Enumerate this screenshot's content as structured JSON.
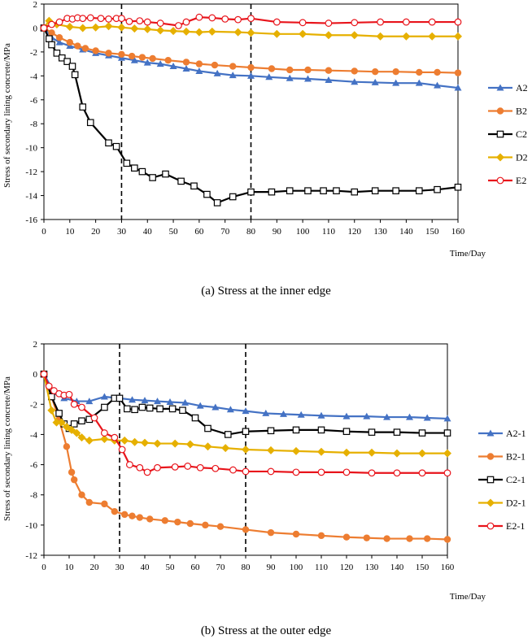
{
  "chart_data": [
    {
      "type": "line",
      "caption": "(a) Stress at the inner edge",
      "xlabel": "Time/Day",
      "ylabel": "Stress of secondary lining concrete/MPa",
      "xlim": [
        0,
        160
      ],
      "ylim": [
        -16,
        2
      ],
      "xticks": [
        0,
        10,
        20,
        30,
        40,
        50,
        60,
        70,
        80,
        90,
        100,
        110,
        120,
        130,
        140,
        150,
        160
      ],
      "yticks": [
        2,
        0,
        -2,
        -4,
        -6,
        -8,
        -10,
        -12,
        -14,
        -16
      ],
      "vlines": [
        30,
        80
      ],
      "legend_position": "right",
      "grid": false,
      "series": [
        {
          "name": "A2",
          "color": "#4472C4",
          "marker": "triangle",
          "x": [
            0,
            3,
            6,
            10,
            15,
            20,
            25,
            30,
            35,
            40,
            45,
            50,
            55,
            60,
            67,
            73,
            80,
            87,
            95,
            102,
            110,
            120,
            128,
            136,
            145,
            152,
            160
          ],
          "y": [
            0,
            -0.8,
            -1.2,
            -1.5,
            -1.8,
            -2.1,
            -2.3,
            -2.5,
            -2.7,
            -2.9,
            -3.0,
            -3.2,
            -3.4,
            -3.6,
            -3.8,
            -3.95,
            -4.0,
            -4.1,
            -4.2,
            -4.25,
            -4.35,
            -4.5,
            -4.55,
            -4.6,
            -4.6,
            -4.8,
            -5.0
          ]
        },
        {
          "name": "B2",
          "color": "#ED7D31",
          "marker": "circle-filled",
          "x": [
            0,
            3,
            6,
            10,
            13,
            16,
            20,
            25,
            30,
            34,
            38,
            42,
            48,
            55,
            60,
            66,
            73,
            80,
            88,
            95,
            102,
            110,
            120,
            128,
            136,
            145,
            152,
            160
          ],
          "y": [
            0,
            -0.4,
            -0.8,
            -1.2,
            -1.5,
            -1.7,
            -1.9,
            -2.1,
            -2.2,
            -2.35,
            -2.45,
            -2.55,
            -2.7,
            -2.85,
            -3.0,
            -3.1,
            -3.2,
            -3.3,
            -3.4,
            -3.5,
            -3.5,
            -3.55,
            -3.6,
            -3.65,
            -3.65,
            -3.7,
            -3.7,
            -3.75
          ]
        },
        {
          "name": "C2",
          "color": "#000000",
          "marker": "square-open",
          "x": [
            0,
            2,
            3,
            5,
            7,
            9,
            11,
            12,
            15,
            18,
            25,
            28,
            32,
            35,
            38,
            42,
            47,
            53,
            58,
            63,
            67,
            73,
            80,
            88,
            95,
            102,
            108,
            113,
            120,
            128,
            136,
            145,
            152,
            160
          ],
          "y": [
            0,
            -0.9,
            -1.4,
            -2.1,
            -2.5,
            -2.8,
            -3.2,
            -3.9,
            -6.6,
            -7.9,
            -9.6,
            -9.9,
            -11.3,
            -11.7,
            -12.0,
            -12.5,
            -12.2,
            -12.8,
            -13.2,
            -13.9,
            -14.6,
            -14.1,
            -13.7,
            -13.7,
            -13.6,
            -13.6,
            -13.6,
            -13.6,
            -13.7,
            -13.6,
            -13.6,
            -13.6,
            -13.5,
            -13.3
          ]
        },
        {
          "name": "D2",
          "color": "#E6B000",
          "marker": "diamond",
          "x": [
            0,
            2,
            5,
            10,
            15,
            20,
            25,
            30,
            35,
            40,
            45,
            50,
            55,
            60,
            65,
            75,
            80,
            90,
            100,
            110,
            120,
            130,
            140,
            150,
            160
          ],
          "y": [
            0,
            0.6,
            0.3,
            0.1,
            0.0,
            0.05,
            0.15,
            0.05,
            -0.05,
            -0.1,
            -0.2,
            -0.25,
            -0.3,
            -0.35,
            -0.3,
            -0.35,
            -0.4,
            -0.5,
            -0.5,
            -0.6,
            -0.6,
            -0.7,
            -0.7,
            -0.7,
            -0.7
          ]
        },
        {
          "name": "E2",
          "color": "#E8141B",
          "marker": "circle-open",
          "x": [
            0,
            3,
            6,
            9,
            11,
            13,
            15,
            18,
            22,
            25,
            28,
            30,
            33,
            37,
            40,
            45,
            52,
            55,
            60,
            65,
            70,
            75,
            80,
            90,
            100,
            110,
            120,
            130,
            140,
            150,
            160
          ],
          "y": [
            0,
            0.3,
            0.5,
            0.8,
            0.75,
            0.85,
            0.8,
            0.85,
            0.8,
            0.75,
            0.8,
            0.8,
            0.55,
            0.6,
            0.5,
            0.4,
            0.2,
            0.5,
            0.9,
            0.85,
            0.75,
            0.7,
            0.8,
            0.5,
            0.45,
            0.4,
            0.45,
            0.5,
            0.5,
            0.5,
            0.5
          ]
        }
      ]
    },
    {
      "type": "line",
      "caption": "(b) Stress at the outer edge",
      "xlabel": "Time/Day",
      "ylabel": "Stress of secondary lining concrete/MPa",
      "xlim": [
        0,
        160
      ],
      "ylim": [
        -12,
        2
      ],
      "xticks": [
        0,
        10,
        20,
        30,
        40,
        50,
        60,
        70,
        80,
        90,
        100,
        110,
        120,
        130,
        140,
        150,
        160
      ],
      "yticks": [
        2,
        0,
        -2,
        -4,
        -6,
        -8,
        -10,
        -12
      ],
      "vlines": [
        30,
        80
      ],
      "legend_position": "right",
      "grid": false,
      "series": [
        {
          "name": "A2-1",
          "color": "#4472C4",
          "marker": "triangle",
          "x": [
            0,
            4,
            8,
            13,
            18,
            24,
            30,
            35,
            40,
            45,
            50,
            56,
            62,
            68,
            74,
            80,
            88,
            95,
            102,
            110,
            120,
            128,
            136,
            145,
            152,
            160
          ],
          "y": [
            0,
            -1.2,
            -1.6,
            -1.8,
            -1.8,
            -1.5,
            -1.6,
            -1.7,
            -1.75,
            -1.8,
            -1.85,
            -1.9,
            -2.1,
            -2.2,
            -2.35,
            -2.45,
            -2.6,
            -2.65,
            -2.7,
            -2.75,
            -2.8,
            -2.8,
            -2.85,
            -2.85,
            -2.9,
            -2.95
          ]
        },
        {
          "name": "B2-1",
          "color": "#ED7D31",
          "marker": "circle-filled",
          "x": [
            0,
            3,
            6,
            9,
            11,
            12,
            15,
            18,
            24,
            28,
            32,
            35,
            38,
            42,
            48,
            53,
            58,
            64,
            70,
            80,
            90,
            100,
            110,
            120,
            128,
            136,
            145,
            152,
            160
          ],
          "y": [
            0,
            -1.5,
            -3.0,
            -4.8,
            -6.5,
            -7.0,
            -8.0,
            -8.5,
            -8.6,
            -9.1,
            -9.3,
            -9.4,
            -9.5,
            -9.6,
            -9.7,
            -9.8,
            -9.9,
            -10.0,
            -10.1,
            -10.3,
            -10.5,
            -10.6,
            -10.7,
            -10.8,
            -10.85,
            -10.9,
            -10.9,
            -10.9,
            -10.95
          ]
        },
        {
          "name": "C2-1",
          "color": "#000000",
          "marker": "square-open",
          "x": [
            0,
            3,
            6,
            8,
            10,
            12,
            15,
            18,
            24,
            28,
            30,
            33,
            36,
            39,
            42,
            46,
            51,
            55,
            60,
            65,
            73,
            80,
            90,
            100,
            110,
            120,
            130,
            140,
            150,
            160
          ],
          "y": [
            0,
            -1.5,
            -2.6,
            -3.3,
            -3.6,
            -3.3,
            -3.1,
            -3.0,
            -2.2,
            -1.6,
            -1.6,
            -2.3,
            -2.35,
            -2.2,
            -2.25,
            -2.3,
            -2.3,
            -2.4,
            -2.9,
            -3.6,
            -4.0,
            -3.8,
            -3.75,
            -3.7,
            -3.7,
            -3.8,
            -3.85,
            -3.85,
            -3.9,
            -3.9
          ]
        },
        {
          "name": "D2-1",
          "color": "#E6B000",
          "marker": "diamond",
          "x": [
            0,
            3,
            5,
            7,
            9,
            11,
            13,
            15,
            18,
            24,
            28,
            32,
            36,
            40,
            45,
            52,
            58,
            65,
            72,
            80,
            90,
            100,
            110,
            120,
            130,
            140,
            150,
            160
          ],
          "y": [
            0,
            -2.4,
            -3.2,
            -3.2,
            -3.5,
            -3.7,
            -3.9,
            -4.2,
            -4.4,
            -4.3,
            -4.4,
            -4.4,
            -4.5,
            -4.55,
            -4.6,
            -4.6,
            -4.65,
            -4.8,
            -4.9,
            -5.0,
            -5.05,
            -5.1,
            -5.15,
            -5.2,
            -5.2,
            -5.25,
            -5.25,
            -5.25
          ]
        },
        {
          "name": "E2-1",
          "color": "#E8141B",
          "marker": "circle-open",
          "x": [
            0,
            2,
            4,
            6,
            8,
            10,
            12,
            15,
            20,
            24,
            28,
            31,
            34,
            38,
            41,
            45,
            52,
            57,
            62,
            68,
            75,
            80,
            90,
            100,
            110,
            120,
            130,
            140,
            150,
            160
          ],
          "y": [
            0,
            -0.8,
            -1.1,
            -1.3,
            -1.4,
            -1.35,
            -2.0,
            -2.2,
            -2.9,
            -3.9,
            -4.2,
            -5.0,
            -6.0,
            -6.2,
            -6.5,
            -6.2,
            -6.15,
            -6.1,
            -6.2,
            -6.25,
            -6.35,
            -6.45,
            -6.45,
            -6.5,
            -6.5,
            -6.5,
            -6.55,
            -6.55,
            -6.55,
            -6.55
          ]
        }
      ]
    }
  ]
}
